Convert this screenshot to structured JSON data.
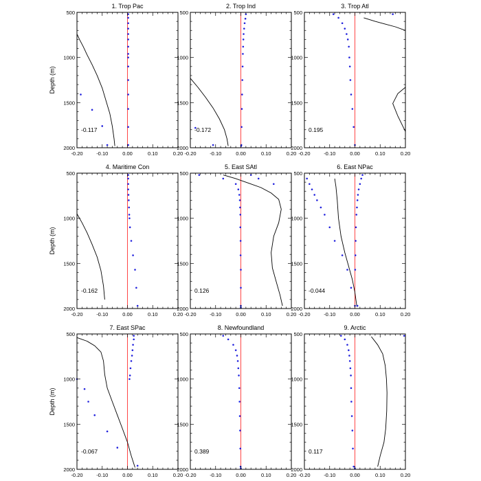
{
  "figure": {
    "ylabel": "Depth (m)",
    "colors": {
      "curve": "#000000",
      "dots": "#2222dd",
      "zero_line": "#ff4444",
      "frame": "#000000"
    }
  },
  "chart_data": [
    {
      "type": "line",
      "title": "1. Trop Pac",
      "value_label": "-0.117",
      "xlim": [
        -0.2,
        0.2
      ],
      "ylim": [
        2000,
        500
      ],
      "xticks": [
        "-0.20",
        "-0.10",
        "0.00",
        "0.10",
        "0.20"
      ],
      "yticks": [
        "500",
        "1000",
        "1500",
        "2000"
      ],
      "curve": {
        "x": [
          -0.2,
          -0.19,
          -0.175,
          -0.16,
          -0.14,
          -0.12,
          -0.1,
          -0.085,
          -0.07,
          -0.06,
          -0.053,
          -0.05
        ],
        "y": [
          740,
          800,
          880,
          970,
          1080,
          1200,
          1340,
          1480,
          1620,
          1760,
          1900,
          1980
        ]
      },
      "dots": {
        "x": [
          0.003,
          0.003,
          0.003,
          0.003,
          0.003,
          0.003,
          0.003,
          0.003,
          0.003,
          0.003,
          0.003,
          0.003,
          0.003,
          0.003,
          0.003,
          -0.185,
          -0.14,
          -0.1,
          -0.08
        ],
        "y": [
          520,
          560,
          620,
          680,
          740,
          800,
          880,
          960,
          1000,
          1100,
          1250,
          1410,
          1570,
          1770,
          1970,
          1410,
          1580,
          1760,
          1970
        ]
      }
    },
    {
      "type": "line",
      "title": "2. Trop Ind",
      "value_label": "-0.172",
      "xlim": [
        -0.2,
        0.2
      ],
      "ylim": [
        2000,
        500
      ],
      "xticks": [
        "-0.20",
        "-0.10",
        "0.00",
        "0.10",
        "0.20"
      ],
      "yticks": [
        "500",
        "1000",
        "1500",
        "2000"
      ],
      "curve": {
        "x": [
          -0.2,
          -0.17,
          -0.14,
          -0.11,
          -0.085,
          -0.065,
          -0.055,
          -0.05
        ],
        "y": [
          1230,
          1330,
          1440,
          1560,
          1680,
          1800,
          1900,
          1980
        ]
      },
      "dots": {
        "x": [
          0.02,
          0.018,
          0.015,
          0.013,
          0.011,
          0.01,
          0.009,
          0.008,
          0.007,
          0.006,
          0.005,
          0.004,
          0.003,
          0.002,
          0.001,
          -0.18,
          -0.11
        ],
        "y": [
          520,
          570,
          620,
          680,
          740,
          800,
          880,
          960,
          1100,
          1250,
          1410,
          1570,
          1770,
          1970,
          1980,
          1780,
          1970
        ]
      }
    },
    {
      "type": "line",
      "title": "3. Trop Atl",
      "value_label": "0.195",
      "xlim": [
        -0.2,
        0.2
      ],
      "ylim": [
        2000,
        500
      ],
      "xticks": [
        "-0.20",
        "-0.10",
        "0.00",
        "0.10",
        "0.20"
      ],
      "yticks": [
        "500",
        "1000",
        "1500",
        "2000"
      ],
      "curve": {
        "x": [
          0.035,
          0.08,
          0.12,
          0.16,
          0.2,
          null,
          0.2,
          0.17,
          0.15,
          0.17,
          0.2
        ],
        "y": [
          560,
          600,
          630,
          660,
          700,
          null,
          1330,
          1400,
          1510,
          1650,
          1820
        ]
      },
      "dots": {
        "x": [
          0.15,
          -0.085,
          -0.065,
          -0.05,
          -0.04,
          -0.033,
          -0.028,
          -0.024,
          -0.022,
          -0.02,
          -0.018,
          -0.015,
          -0.01,
          -0.005,
          0.0
        ],
        "y": [
          520,
          520,
          560,
          620,
          680,
          740,
          800,
          880,
          1000,
          1100,
          1250,
          1410,
          1570,
          1770,
          1970
        ]
      }
    },
    {
      "type": "line",
      "title": "4. Maritime Con",
      "value_label": "-0.162",
      "xlim": [
        -0.2,
        0.2
      ],
      "ylim": [
        2000,
        500
      ],
      "xticks": [
        "-0.20",
        "-0.10",
        "0.00",
        "0.10",
        "0.20"
      ],
      "yticks": [
        "500",
        "1000",
        "1500",
        "2000"
      ],
      "curve": {
        "x": [
          -0.2,
          -0.18,
          -0.16,
          -0.14,
          -0.12,
          -0.105,
          -0.095,
          -0.09
        ],
        "y": [
          950,
          1050,
          1160,
          1290,
          1430,
          1580,
          1750,
          1900
        ]
      },
      "dots": {
        "x": [
          0.003,
          0.003,
          0.003,
          0.003,
          0.004,
          0.005,
          0.006,
          0.007,
          0.008,
          0.01,
          0.015,
          0.022,
          0.03,
          0.035,
          0.04
        ],
        "y": [
          520,
          560,
          620,
          680,
          740,
          800,
          880,
          960,
          1000,
          1100,
          1250,
          1410,
          1570,
          1770,
          1970
        ]
      }
    },
    {
      "type": "line",
      "title": "5. East SAtl",
      "value_label": "0.126",
      "xlim": [
        -0.2,
        0.2
      ],
      "ylim": [
        2000,
        500
      ],
      "xticks": [
        "-0.20",
        "-0.10",
        "0.00",
        "0.10",
        "0.20"
      ],
      "yticks": [
        "500",
        "1000",
        "1500",
        "2000"
      ],
      "curve": {
        "x": [
          -0.07,
          -0.02,
          0.03,
          0.08,
          0.12,
          0.15,
          0.16,
          0.15,
          0.13,
          0.12,
          0.125,
          0.14,
          0.155,
          0.165
        ],
        "y": [
          520,
          560,
          610,
          660,
          720,
          790,
          900,
          1050,
          1200,
          1380,
          1550,
          1700,
          1850,
          1970
        ]
      },
      "dots": {
        "x": [
          -0.165,
          -0.07,
          -0.02,
          -0.01,
          -0.006,
          -0.004,
          -0.003,
          -0.002,
          -0.002,
          -0.001,
          -0.001,
          0.0,
          0.0,
          0.0,
          0.0,
          0.04,
          0.07,
          0.13
        ],
        "y": [
          520,
          560,
          620,
          680,
          740,
          800,
          880,
          960,
          1100,
          1250,
          1410,
          1570,
          1770,
          1970,
          1990,
          520,
          560,
          620
        ]
      }
    },
    {
      "type": "line",
      "title": "6. East NPac",
      "value_label": "-0.044",
      "xlim": [
        -0.2,
        0.2
      ],
      "ylim": [
        2000,
        500
      ],
      "xticks": [
        "-0.20",
        "-0.10",
        "0.00",
        "0.10",
        "0.20"
      ],
      "yticks": [
        "500",
        "1000",
        "1500",
        "2000"
      ],
      "curve": {
        "x": [
          -0.08,
          -0.075,
          -0.07,
          -0.065,
          -0.055,
          -0.04,
          -0.025,
          -0.01,
          0.0,
          0.005,
          0.008
        ],
        "y": [
          560,
          650,
          800,
          1000,
          1200,
          1380,
          1530,
          1680,
          1820,
          1920,
          1980
        ]
      },
      "dots": {
        "x": [
          -0.19,
          -0.18,
          -0.17,
          -0.16,
          -0.15,
          -0.135,
          -0.12,
          -0.1,
          -0.08,
          -0.05,
          -0.03,
          -0.015,
          0.03,
          0.025,
          0.02,
          0.015,
          0.012,
          0.01,
          0.008,
          0.006,
          0.004,
          0.003,
          0.002,
          0.001,
          0.0,
          0.01
        ],
        "y": [
          560,
          620,
          680,
          740,
          800,
          880,
          960,
          1100,
          1250,
          1410,
          1570,
          1770,
          520,
          560,
          620,
          680,
          740,
          800,
          880,
          960,
          1100,
          1250,
          1410,
          1570,
          1970,
          1970
        ]
      }
    },
    {
      "type": "line",
      "title": "7. East SPac",
      "value_label": "-0.067",
      "xlim": [
        -0.2,
        0.2
      ],
      "ylim": [
        2000,
        500
      ],
      "xticks": [
        "-0.20",
        "-0.10",
        "0.00",
        "0.10",
        "0.20"
      ],
      "yticks": [
        "500",
        "1000",
        "1500",
        "2000"
      ],
      "curve": {
        "x": [
          -0.2,
          -0.16,
          -0.13,
          -0.105,
          -0.095,
          -0.09,
          -0.08,
          -0.06,
          -0.04,
          -0.02,
          0.0,
          0.015,
          0.03
        ],
        "y": [
          540,
          580,
          630,
          700,
          800,
          950,
          1100,
          1250,
          1400,
          1550,
          1700,
          1850,
          1980
        ]
      },
      "dots": {
        "x": [
          0.025,
          0.025,
          0.022,
          0.02,
          0.018,
          0.015,
          0.012,
          0.01,
          0.008,
          -0.2,
          -0.17,
          -0.155,
          -0.13,
          -0.08,
          -0.04,
          0.04
        ],
        "y": [
          520,
          560,
          620,
          680,
          740,
          800,
          880,
          960,
          1000,
          1000,
          1110,
          1250,
          1400,
          1580,
          1760,
          1960
        ]
      }
    },
    {
      "type": "line",
      "title": "8. Newfoundland",
      "value_label": "0.389",
      "xlim": [
        -0.2,
        0.2
      ],
      "ylim": [
        2000,
        500
      ],
      "xticks": [
        "-0.20",
        "-0.10",
        "0.00",
        "0.10",
        "0.20"
      ],
      "yticks": [
        "500",
        "1000",
        "1500",
        "2000"
      ],
      "curve": {
        "x": [],
        "y": []
      },
      "dots": {
        "x": [
          -0.07,
          -0.05,
          -0.03,
          -0.02,
          -0.015,
          -0.012,
          -0.01,
          -0.008,
          -0.006,
          -0.005,
          -0.004,
          -0.003,
          -0.002,
          -0.001,
          0.0
        ],
        "y": [
          520,
          560,
          620,
          680,
          740,
          800,
          880,
          960,
          1100,
          1250,
          1410,
          1570,
          1770,
          1970,
          1990
        ]
      }
    },
    {
      "type": "line",
      "title": "9. Arctic",
      "value_label": "0.117",
      "xlim": [
        -0.2,
        0.2
      ],
      "ylim": [
        2000,
        500
      ],
      "xticks": [
        "-0.20",
        "-0.10",
        "0.00",
        "0.10",
        "0.20"
      ],
      "yticks": [
        "500",
        "1000",
        "1500",
        "2000"
      ],
      "curve": {
        "x": [
          0.065,
          0.09,
          0.11,
          0.12,
          0.125,
          0.127,
          0.126,
          0.122,
          0.115,
          0.1,
          0.09
        ],
        "y": [
          530,
          620,
          720,
          850,
          1000,
          1150,
          1350,
          1550,
          1700,
          1850,
          1970
        ]
      },
      "dots": {
        "x": [
          0.195,
          -0.055,
          -0.04,
          -0.03,
          -0.025,
          -0.022,
          -0.02,
          -0.018,
          -0.016,
          -0.015,
          -0.014,
          -0.012,
          -0.01,
          -0.008,
          -0.005,
          0.0
        ],
        "y": [
          520,
          520,
          560,
          620,
          680,
          740,
          800,
          880,
          960,
          1100,
          1250,
          1410,
          1570,
          1770,
          1970,
          1990
        ]
      }
    }
  ]
}
